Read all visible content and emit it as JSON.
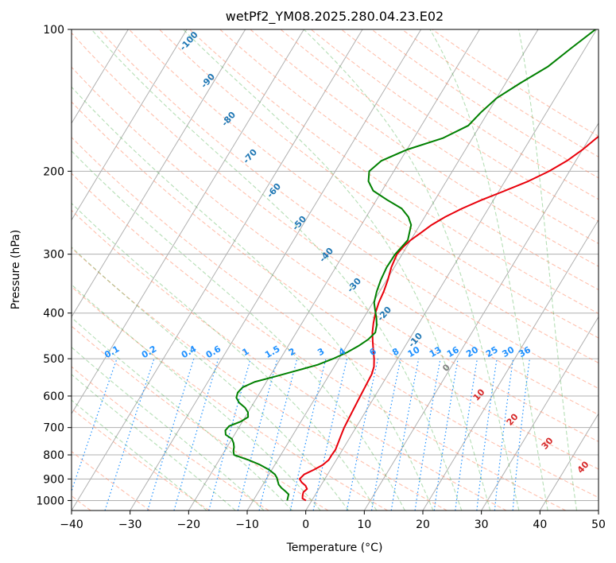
{
  "chart_data": {
    "type": "line",
    "title": "wetPf2_YM08.2025.280.04.23.E02",
    "xlabel": "Temperature (°C)",
    "ylabel": "Pressure (hPa)",
    "xlim": [
      -40,
      50
    ],
    "ylim": [
      1050,
      100
    ],
    "y_scale": "log",
    "x_ticks": [
      "−40",
      "−30",
      "−20",
      "−10",
      "0",
      "10",
      "20",
      "30",
      "40",
      "50"
    ],
    "y_ticks": [
      "100",
      "200",
      "300",
      "400",
      "500",
      "600",
      "700",
      "800",
      "900",
      "1000"
    ],
    "grid": true,
    "series": [
      {
        "color": "#e8000b",
        "values_p": [
          1000,
          990,
          975,
          960,
          945,
          930,
          915,
          900,
          880,
          860,
          840,
          820,
          800,
          780,
          760,
          740,
          720,
          700,
          680,
          660,
          640,
          620,
          600,
          580,
          560,
          540,
          520,
          500,
          480,
          460,
          440,
          420,
          400,
          380,
          360,
          340,
          320,
          300,
          290,
          280,
          270,
          260,
          250,
          240,
          230,
          220,
          210,
          200,
          190,
          180,
          170,
          160,
          150,
          140,
          130,
          120,
          110,
          100
        ],
        "values_t": [
          -1.0,
          -1.8,
          -2.1,
          -2.3,
          -2.0,
          -2.6,
          -3.6,
          -4.3,
          -4.0,
          -2.8,
          -1.8,
          -1.3,
          -1.3,
          -1.2,
          -1.4,
          -1.6,
          -1.8,
          -2.0,
          -2.1,
          -2.2,
          -2.3,
          -2.4,
          -2.5,
          -2.6,
          -2.7,
          -2.8,
          -3.2,
          -4.0,
          -5.0,
          -6.0,
          -7.0,
          -7.8,
          -8.5,
          -9.0,
          -9.3,
          -9.8,
          -10.5,
          -10.9,
          -10.6,
          -10.0,
          -9.0,
          -8.0,
          -6.5,
          -4.5,
          -2.0,
          1.0,
          4.0,
          6.5,
          8.5,
          10.0,
          11.2,
          12.8,
          15.5,
          18.0,
          19.5,
          20.8,
          22.5,
          24.5
        ]
      },
      {
        "color": "#008000",
        "values_p": [
          1000,
          985,
          970,
          955,
          940,
          925,
          910,
          895,
          880,
          860,
          840,
          820,
          800,
          785,
          770,
          755,
          740,
          725,
          710,
          695,
          680,
          665,
          650,
          635,
          620,
          605,
          590,
          575,
          560,
          545,
          530,
          515,
          500,
          485,
          470,
          455,
          440,
          425,
          410,
          395,
          380,
          360,
          340,
          320,
          300,
          280,
          260,
          250,
          240,
          230,
          220,
          210,
          200,
          190,
          180,
          170,
          160,
          150,
          140,
          130,
          120,
          110,
          100
        ],
        "values_t": [
          -4.2,
          -4.4,
          -4.6,
          -5.5,
          -6.5,
          -7.3,
          -7.8,
          -8.3,
          -9.0,
          -10.5,
          -12.5,
          -15.0,
          -18.0,
          -18.5,
          -18.8,
          -19.3,
          -20.0,
          -21.5,
          -22.0,
          -21.8,
          -20.3,
          -19.5,
          -20.0,
          -21.0,
          -22.5,
          -23.5,
          -23.8,
          -23.5,
          -22.0,
          -19.0,
          -16.0,
          -13.0,
          -11.0,
          -9.3,
          -8.0,
          -7.0,
          -6.5,
          -7.0,
          -7.8,
          -8.8,
          -9.8,
          -10.5,
          -11.0,
          -11.3,
          -11.2,
          -10.5,
          -11.5,
          -12.8,
          -14.8,
          -18.2,
          -21.5,
          -23.3,
          -24.2,
          -23.2,
          -20.0,
          -15.0,
          -12.0,
          -11.2,
          -10.0,
          -7.5,
          -4.5,
          -2.5,
          -0.2
        ]
      }
    ],
    "dry_adiabat_labels": [
      "-100",
      "-90",
      "-80",
      "-70",
      "-60",
      "-50",
      "-40",
      "-30",
      "-20",
      "-10"
    ],
    "dry_adiabat_colors": {
      "labels": "#1f77b4",
      "line": "#ff8c69"
    },
    "moist_adiabat_labels": [
      "0",
      "10",
      "20",
      "30",
      "40"
    ],
    "moist_label_colors": {
      "zero": "#808080",
      "warm": "#d62728"
    },
    "mixing_ratio_labels": [
      "0.1",
      "0.2",
      "0.4",
      "0.6",
      "1",
      "1.5",
      "2",
      "3",
      "4",
      "6",
      "8",
      "10",
      "13",
      "16",
      "20",
      "25",
      "30",
      "36"
    ],
    "mixing_ratio_values": [
      0.1,
      0.2,
      0.4,
      0.6,
      1,
      1.5,
      2,
      3,
      4,
      6,
      8,
      10,
      13,
      16,
      20,
      25,
      30,
      36
    ],
    "mixing_ratio_label_pressure": 500,
    "mixing_ratio_color": "#1e90ff"
  }
}
